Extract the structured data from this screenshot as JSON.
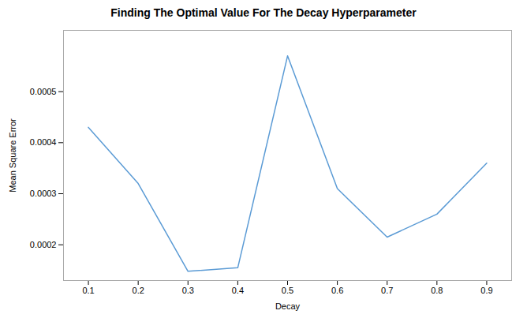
{
  "chart_data": {
    "type": "line",
    "title": "Finding The Optimal Value For The Decay Hyperparameter",
    "xlabel": "Decay",
    "ylabel": "Mean Square Error",
    "x": [
      0.1,
      0.2,
      0.3,
      0.4,
      0.5,
      0.6,
      0.7,
      0.8,
      0.9
    ],
    "values": [
      0.00043,
      0.00032,
      0.000148,
      0.000155,
      0.00057,
      0.00031,
      0.000215,
      0.00026,
      0.00036
    ],
    "color": "#5b9bd5",
    "xlim": [
      0.05,
      0.95
    ],
    "ylim": [
      0.00013,
      0.00062
    ],
    "xticks": [
      0.1,
      0.2,
      0.3,
      0.4,
      0.5,
      0.6,
      0.7,
      0.8,
      0.9
    ],
    "yticks": [
      0.0002,
      0.0003,
      0.0004,
      0.0005
    ],
    "grid": false
  }
}
